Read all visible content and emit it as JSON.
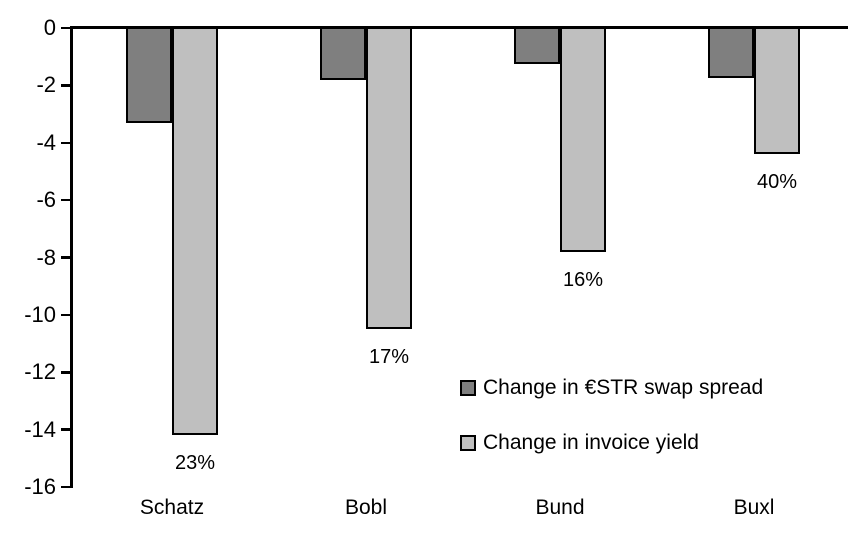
{
  "chart_data": {
    "type": "bar",
    "title": "",
    "xlabel": "",
    "ylabel": "",
    "categories": [
      "Schatz",
      "Bobl",
      "Bund",
      "Buxl"
    ],
    "series": [
      {
        "name": "Change in €STR swap spread",
        "color": "#7F7F7F",
        "values": [
          -3.3,
          -1.8,
          -1.25,
          -1.75
        ]
      },
      {
        "name": "Change in invoice yield",
        "color": "#BFBFBF",
        "values": [
          -14.2,
          -10.5,
          -7.8,
          -4.4
        ],
        "data_labels": [
          "23%",
          "17%",
          "16%",
          "40%"
        ]
      }
    ],
    "ylim": [
      -16,
      0
    ],
    "y_ticks": [
      0,
      -2,
      -4,
      -6,
      -8,
      -10,
      -12,
      -14,
      -16
    ],
    "grid": false,
    "legend_position": "inside-right",
    "bar_border_color": "#000000",
    "axis_color": "#000000",
    "background": "#FFFFFF"
  }
}
